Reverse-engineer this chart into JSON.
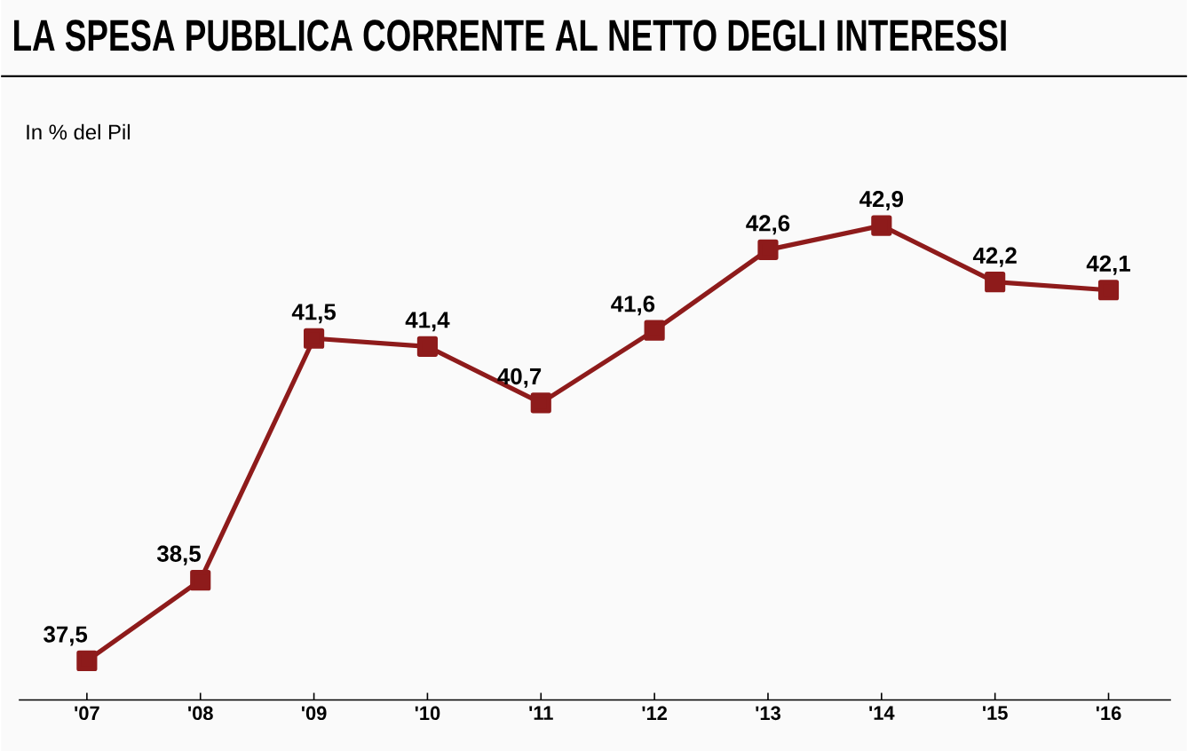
{
  "chart_data": {
    "type": "line",
    "title": "LA SPESA PUBBLICA CORRENTE AL NETTO DEGLI INTERESSI",
    "ylabel": "In % del Pil",
    "categories": [
      "'07",
      "'08",
      "'09",
      "'10",
      "'11",
      "'12",
      "'13",
      "'14",
      "'15",
      "'16"
    ],
    "series": [
      {
        "color": "#8e1b1b",
        "values": [
          37.5,
          38.5,
          41.5,
          41.4,
          40.7,
          41.6,
          42.6,
          42.9,
          42.2,
          42.1
        ],
        "value_labels": [
          "37,5",
          "38,5",
          "41,5",
          "41,4",
          "40,7",
          "41,6",
          "42,6",
          "42,9",
          "42,2",
          "42,1"
        ]
      }
    ],
    "marker": "square",
    "line_style": "solid"
  }
}
